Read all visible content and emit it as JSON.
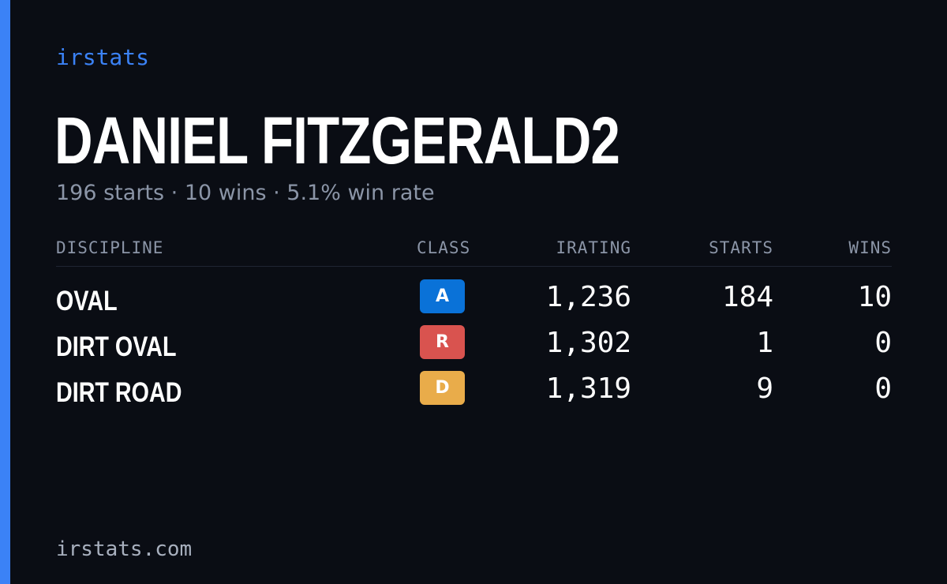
{
  "brand": "irstats",
  "driver": {
    "name": "DANIEL FITZGERALD2",
    "summary": "196 starts · 10 wins · 5.1% win rate"
  },
  "table": {
    "headers": {
      "discipline": "DISCIPLINE",
      "class": "CLASS",
      "irating": "IRATING",
      "starts": "STARTS",
      "wins": "WINS"
    },
    "rows": [
      {
        "discipline": "OVAL",
        "class": "A",
        "class_color": "#0a72d8",
        "irating": "1,236",
        "starts": "184",
        "wins": "10"
      },
      {
        "discipline": "DIRT OVAL",
        "class": "R",
        "class_color": "#d9534f",
        "irating": "1,302",
        "starts": "1",
        "wins": "0"
      },
      {
        "discipline": "DIRT ROAD",
        "class": "D",
        "class_color": "#e9ac4a",
        "irating": "1,319",
        "starts": "9",
        "wins": "0"
      }
    ]
  },
  "footer": "irstats.com"
}
